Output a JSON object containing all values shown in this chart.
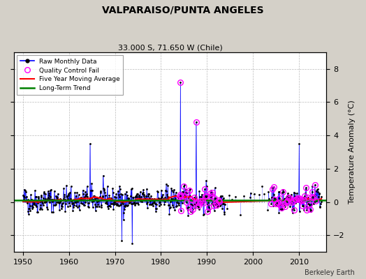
{
  "title": "VALPARAISO/PUNTA ANGELES",
  "subtitle": "33.000 S, 71.650 W (Chile)",
  "ylabel": "Temperature Anomaly (°C)",
  "attribution": "Berkeley Earth",
  "xlim": [
    1948,
    2016
  ],
  "ylim": [
    -3,
    9
  ],
  "yticks": [
    -2,
    0,
    2,
    4,
    6,
    8
  ],
  "xticks": [
    1950,
    1960,
    1970,
    1980,
    1990,
    2000,
    2010
  ],
  "long_term_trend_y": 0.12,
  "bg_color": "#d4d0c8",
  "plot_bg_color": "#ffffff",
  "seed": 42,
  "years_start": 1950,
  "years_end": 2014
}
